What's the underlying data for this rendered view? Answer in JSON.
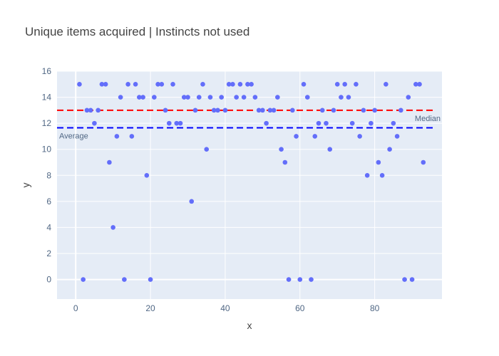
{
  "chart_data": {
    "type": "scatter",
    "title": "Unique items acquired | Instincts not used",
    "xlabel": "x",
    "ylabel": "y",
    "xlim": [
      -5,
      98
    ],
    "ylim": [
      -1.5,
      16
    ],
    "xticks": [
      0,
      20,
      40,
      60,
      80
    ],
    "yticks": [
      0,
      2,
      4,
      6,
      8,
      10,
      12,
      14,
      16
    ],
    "grid": true,
    "marker_color": "#636efa",
    "lines": [
      {
        "label": "Median",
        "y": 13,
        "color": "#ff0000",
        "dash": "dash",
        "label_position": "right"
      },
      {
        "label": "Average",
        "y": 11.65,
        "color": "#0000ff",
        "dash": "dash",
        "label_position": "left"
      }
    ],
    "x": [
      1,
      2,
      3,
      4,
      5,
      6,
      7,
      8,
      9,
      10,
      11,
      12,
      13,
      14,
      15,
      16,
      17,
      18,
      19,
      20,
      21,
      22,
      23,
      24,
      25,
      26,
      27,
      28,
      29,
      30,
      31,
      32,
      33,
      34,
      35,
      36,
      37,
      38,
      39,
      40,
      41,
      42,
      43,
      44,
      45,
      46,
      47,
      48,
      49,
      50,
      51,
      52,
      53,
      54,
      55,
      56,
      57,
      58,
      59,
      60,
      61,
      62,
      63,
      64,
      65,
      66,
      67,
      68,
      69,
      70,
      71,
      72,
      73,
      74,
      75,
      76,
      77,
      78,
      79,
      80,
      81,
      82,
      83,
      84,
      85,
      86,
      87,
      88,
      89,
      90,
      91,
      92,
      93
    ],
    "y": [
      15,
      0,
      13,
      13,
      12,
      13,
      15,
      15,
      9,
      4,
      11,
      14,
      0,
      15,
      11,
      15,
      14,
      14,
      8,
      0,
      14,
      15,
      15,
      13,
      12,
      15,
      12,
      12,
      14,
      14,
      6,
      13,
      14,
      15,
      10,
      14,
      13,
      13,
      14,
      13,
      15,
      15,
      14,
      15,
      14,
      15,
      15,
      14,
      13,
      13,
      12,
      13,
      13,
      14,
      10,
      9,
      0,
      13,
      11,
      0,
      15,
      14,
      0,
      11,
      12,
      13,
      12,
      10,
      13,
      15,
      14,
      15,
      14,
      12,
      15,
      11,
      13,
      8,
      12,
      13,
      9,
      8,
      15,
      10,
      12,
      11,
      13,
      0,
      14,
      0,
      15,
      15,
      9
    ]
  }
}
